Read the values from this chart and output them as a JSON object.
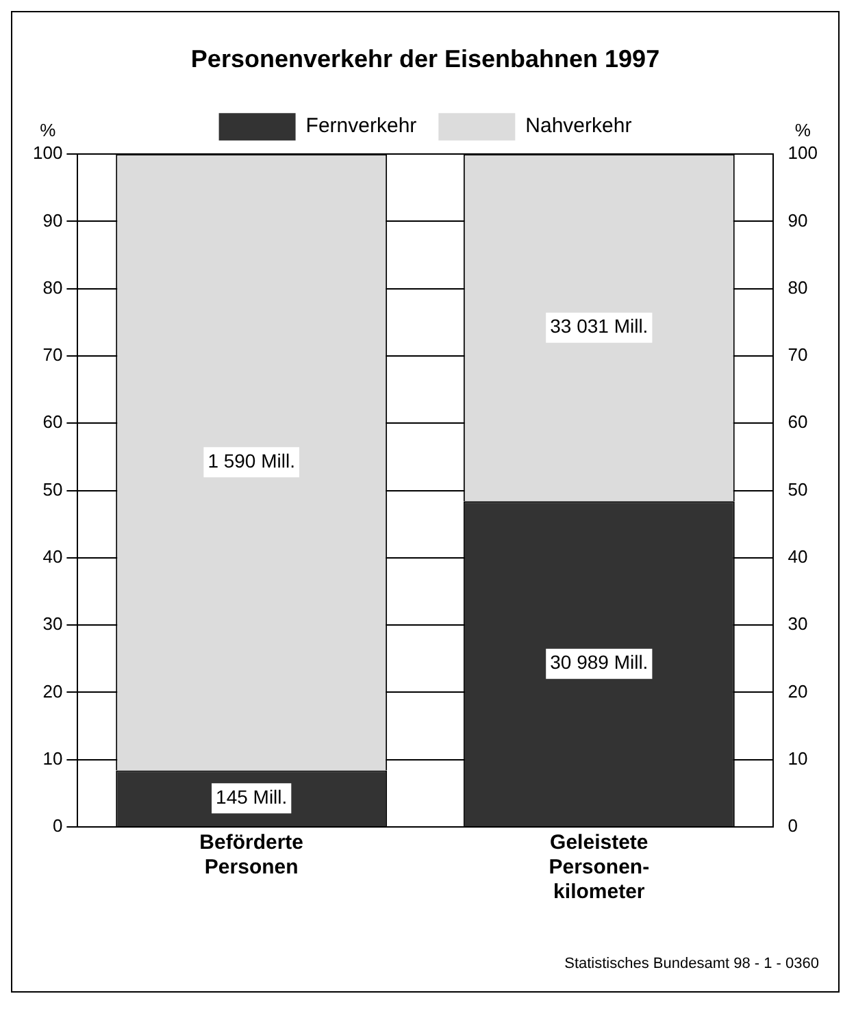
{
  "chart_data": {
    "type": "bar",
    "title": "Personenverkehr der Eisenbahnen 1997",
    "categories": [
      "Beförderte Personen",
      "Geleistete Personen-kilometer"
    ],
    "stacked": true,
    "series": [
      {
        "name": "Fernverkehr",
        "color": "#333333",
        "values": [
          8.4,
          48.4
        ]
      },
      {
        "name": "Nahverkehr",
        "color": "#dcdcdc",
        "values": [
          91.6,
          51.6
        ]
      }
    ],
    "ylabel": "%",
    "y2label": "%",
    "ylim": [
      0,
      100
    ],
    "yticks": [
      0,
      10,
      20,
      30,
      40,
      50,
      60,
      70,
      80,
      90,
      100
    ],
    "y2lim": [
      0,
      100
    ],
    "y2ticks": [
      0,
      10,
      20,
      30,
      40,
      50,
      60,
      70,
      80,
      90,
      100
    ],
    "grid": "y",
    "legend": "top",
    "annotations": [
      "145 Mill.",
      "30 989 Mill.",
      "1 590 Mill.",
      "33 031 Mill.",
      "Statistisches Bundesamt 98 - 1 - 0360"
    ]
  }
}
